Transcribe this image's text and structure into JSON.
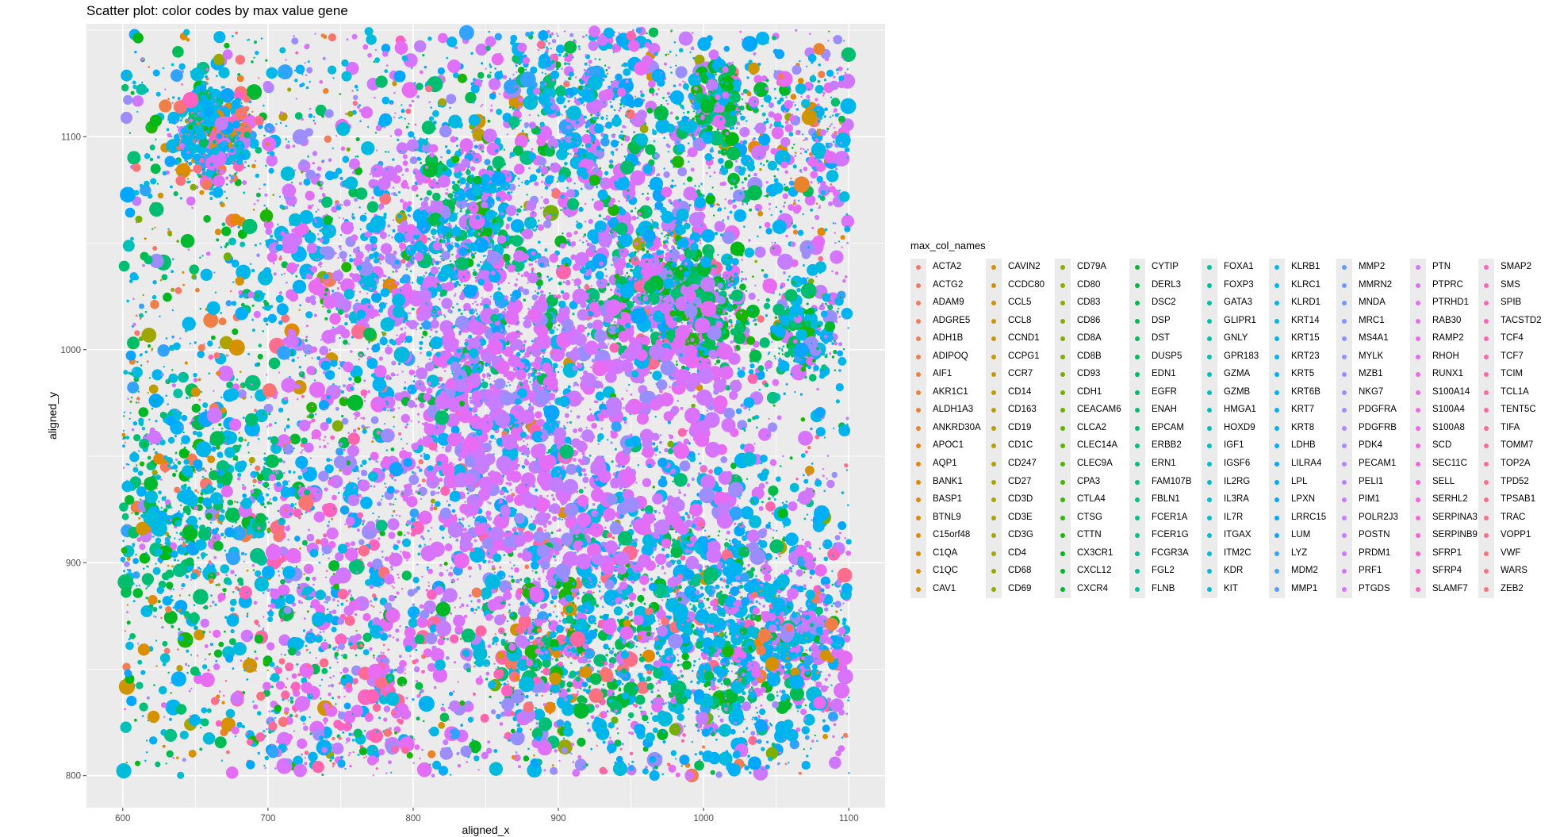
{
  "chart_data": {
    "type": "scatter",
    "title": "Scatter plot: color codes by max value gene",
    "xlabel": "aligned_x",
    "ylabel": "aligned_y",
    "xlim": [
      575,
      1125
    ],
    "ylim": [
      785,
      1153
    ],
    "x_ticks": [
      600,
      700,
      800,
      900,
      1000,
      1100
    ],
    "y_ticks": [
      800,
      900,
      1000,
      1100
    ],
    "grid": true,
    "panel_background": "#ebebeb",
    "legend_title": "max_col_names",
    "legend_position": "right",
    "genes": [
      "ACTA2",
      "ACTG2",
      "ADAM9",
      "ADGRE5",
      "ADH1B",
      "ADIPOQ",
      "AIF1",
      "AKR1C1",
      "ALDH1A3",
      "ANKRD30A",
      "APOC1",
      "AQP1",
      "BANK1",
      "BASP1",
      "BTNL9",
      "C15orf48",
      "C1QA",
      "C1QC",
      "CAV1",
      "CAVIN2",
      "CCDC80",
      "CCL5",
      "CCL8",
      "CCND1",
      "CCPG1",
      "CCR7",
      "CD14",
      "CD163",
      "CD19",
      "CD1C",
      "CD247",
      "CD27",
      "CD3D",
      "CD3E",
      "CD3G",
      "CD4",
      "CD68",
      "CD69",
      "CD79A",
      "CD80",
      "CD83",
      "CD86",
      "CD8A",
      "CD8B",
      "CD93",
      "CDH1",
      "CEACAM6",
      "CLCA2",
      "CLEC14A",
      "CLEC9A",
      "CPA3",
      "CTLA4",
      "CTSG",
      "CTTN",
      "CX3CR1",
      "CXCL12",
      "CXCR4",
      "CYTIP",
      "DERL3",
      "DSC2",
      "DSP",
      "DST",
      "DUSP5",
      "EDN1",
      "EGFR",
      "ENAH",
      "EPCAM",
      "ERBB2",
      "ERN1",
      "FAM107B",
      "FBLN1",
      "FCER1A",
      "FCER1G",
      "FCGR3A",
      "FGL2",
      "FLNB",
      "FOXA1",
      "FOXP3",
      "GATA3",
      "GLIPR1",
      "GNLY",
      "GPR183",
      "GZMA",
      "GZMB",
      "HMGA1",
      "HOXD9",
      "IGF1",
      "IGSF6",
      "IL2RG",
      "IL3RA",
      "IL7R",
      "ITGAX",
      "ITM2C",
      "KDR",
      "KIT",
      "KLRB1",
      "KLRC1",
      "KLRD1",
      "KRT14",
      "KRT15",
      "KRT23",
      "KRT5",
      "KRT6B",
      "KRT7",
      "KRT8",
      "LDHB",
      "LILRA4",
      "LPL",
      "LPXN",
      "LRRC15",
      "LUM",
      "LYZ",
      "MDM2",
      "MMP1",
      "MMP2",
      "MMRN2",
      "MNDA",
      "MRC1",
      "MS4A1",
      "MYLK",
      "MZB1",
      "NKG7",
      "PDGFRA",
      "PDGFRB",
      "PDK4",
      "PECAM1",
      "PELI1",
      "PIM1",
      "POLR2J3",
      "POSTN",
      "PRDM1",
      "PRF1",
      "PTGDS",
      "PTN",
      "PTPRC",
      "PTRHD1",
      "RAB30",
      "RAMP2",
      "RHOH",
      "RUNX1",
      "S100A14",
      "S100A4",
      "S100A8",
      "SCD",
      "SEC11C",
      "SELL",
      "SERHL2",
      "SERPINA3",
      "SERPINB9",
      "SFRP1",
      "SFRP4",
      "SLAMF7",
      "SMAP2",
      "SMS",
      "SPIB",
      "TACSTD2",
      "TCF4",
      "TCF7",
      "TCIM",
      "TCL1A",
      "TENT5C",
      "TIFA",
      "TOMM7",
      "TOP2A",
      "TPD52",
      "TPSAB1",
      "TRAC",
      "VOPP1",
      "VWF",
      "WARS",
      "ZEB2"
    ],
    "legend_columns": 9,
    "legend_rows": 19,
    "points": "over 10,000 points; positions approximated from observed cluster structure, colors follow the gene palette"
  }
}
